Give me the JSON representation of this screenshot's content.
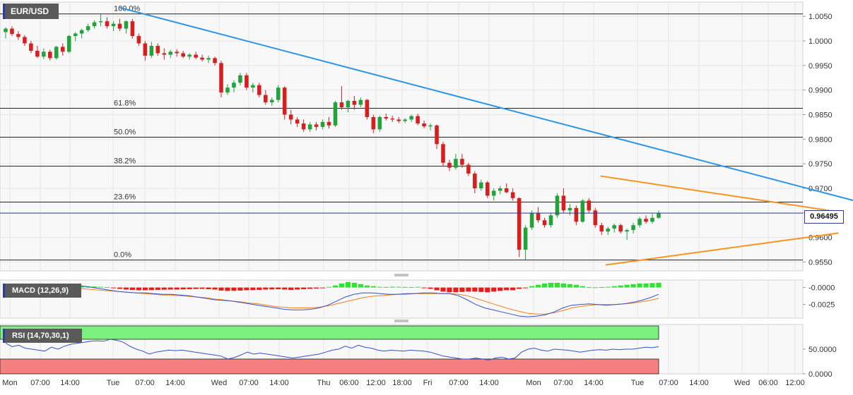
{
  "symbol": "EUR/USD",
  "current_price_label": "0.96495",
  "macd_label": "MACD (12,26,9)",
  "rsi_label": "RSI (14,70,30,1)",
  "x_axis_labels": [
    "Mon",
    "07:00",
    "14:00",
    "Tue",
    "07:00",
    "14:00",
    "Wed",
    "07:00",
    "14:00",
    "Thu",
    "06:00",
    "12:00",
    "18:00",
    "Fri",
    "07:00",
    "14:00",
    "Mon",
    "07:00",
    "14:00",
    "Tue",
    "07:00",
    "14:00",
    "Wed",
    "06:00",
    "12:00"
  ],
  "colors": {
    "bull": "#21a33a",
    "bear": "#d81f1f",
    "trendline": "#2b95e8",
    "triangle": "#f7941d",
    "price_line": "#2d3a8c",
    "macd_line": "#3451c6",
    "signal_line": "#f07f20",
    "rsi_line": "#3451c6",
    "rsi_overbought": "#7cf07c",
    "rsi_oversold": "#f58080"
  },
  "chart_data": [
    {
      "type": "candlestick",
      "title": "EUR/USD",
      "y_ticks": [
        0.955,
        0.96,
        0.965,
        0.97,
        0.975,
        0.98,
        0.985,
        0.99,
        0.995,
        1.0,
        1.005
      ],
      "ylim": [
        0.9532,
        1.0079
      ],
      "current_price": 0.96495,
      "fibonacci": [
        {
          "label": "100.0%",
          "value": 1.0055
        },
        {
          "label": "61.8%",
          "value": 0.9863
        },
        {
          "label": "50.0%",
          "value": 0.9804
        },
        {
          "label": "38.2%",
          "value": 0.9745
        },
        {
          "label": "23.6%",
          "value": 0.9672
        },
        {
          "label": "0.0%",
          "value": 0.9554
        }
      ],
      "ohlc": [
        [
          1.0018,
          1.0028,
          1.0005,
          1.0025
        ],
        [
          1.0025,
          1.003,
          1.001,
          1.0014
        ],
        [
          1.0014,
          1.002,
          1.0002,
          1.0008
        ],
        [
          1.0008,
          1.0012,
          0.999,
          0.9995
        ],
        [
          0.9995,
          1.0,
          0.9975,
          0.998
        ],
        [
          0.998,
          0.999,
          0.9965,
          0.9968
        ],
        [
          0.9968,
          0.9985,
          0.9963,
          0.9978
        ],
        [
          0.9978,
          0.9982,
          0.996,
          0.9965
        ],
        [
          0.9965,
          0.999,
          0.9962,
          0.9988
        ],
        [
          0.9988,
          0.9995,
          0.997,
          0.9978
        ],
        [
          0.9978,
          1.0012,
          0.9975,
          1.001
        ],
        [
          1.001,
          1.0018,
          1.0,
          1.0015
        ],
        [
          1.0015,
          1.0025,
          1.0005,
          1.0022
        ],
        [
          1.0022,
          1.0035,
          1.0018,
          1.003
        ],
        [
          1.003,
          1.0042,
          1.0025,
          1.0038
        ],
        [
          1.0038,
          1.0055,
          1.003,
          1.004
        ],
        [
          1.004,
          1.0048,
          1.0025,
          1.003
        ],
        [
          1.003,
          1.004,
          1.002,
          1.0035
        ],
        [
          1.0035,
          1.0045,
          1.002,
          1.0025
        ],
        [
          1.0025,
          1.0042,
          1.0015,
          1.004
        ],
        [
          1.004,
          1.0045,
          1.0005,
          1.001
        ],
        [
          1.001,
          1.0015,
          0.999,
          0.9995
        ],
        [
          0.9995,
          1.0,
          0.996,
          0.997
        ],
        [
          0.997,
          0.9998,
          0.9965,
          0.999
        ],
        [
          0.999,
          0.9995,
          0.997,
          0.9975
        ],
        [
          0.9975,
          0.9985,
          0.9962,
          0.9972
        ],
        [
          0.9972,
          0.9982,
          0.9965,
          0.9978
        ],
        [
          0.9978,
          0.9983,
          0.9968,
          0.9975
        ],
        [
          0.9975,
          0.998,
          0.9965,
          0.9968
        ],
        [
          0.9968,
          0.9975,
          0.9962,
          0.9972
        ],
        [
          0.9972,
          0.9978,
          0.9963,
          0.9966
        ],
        [
          0.9966,
          0.9972,
          0.9958,
          0.9962
        ],
        [
          0.9962,
          0.997,
          0.9955,
          0.9965
        ],
        [
          0.9965,
          0.9968,
          0.995,
          0.9955
        ],
        [
          0.9955,
          0.996,
          0.9885,
          0.9895
        ],
        [
          0.9895,
          0.9912,
          0.989,
          0.9905
        ],
        [
          0.9905,
          0.992,
          0.9895,
          0.9915
        ],
        [
          0.9915,
          0.9935,
          0.991,
          0.993
        ],
        [
          0.993,
          0.9935,
          0.99,
          0.9905
        ],
        [
          0.9905,
          0.9915,
          0.9895,
          0.991
        ],
        [
          0.991,
          0.9915,
          0.9885,
          0.989
        ],
        [
          0.989,
          0.99,
          0.987,
          0.9875
        ],
        [
          0.9875,
          0.9885,
          0.9868,
          0.988
        ],
        [
          0.988,
          0.991,
          0.9875,
          0.9905
        ],
        [
          0.9905,
          0.9908,
          0.984,
          0.985
        ],
        [
          0.985,
          0.986,
          0.983,
          0.984
        ],
        [
          0.984,
          0.9845,
          0.9825,
          0.9832
        ],
        [
          0.9832,
          0.984,
          0.9815,
          0.982
        ],
        [
          0.982,
          0.9835,
          0.9815,
          0.983
        ],
        [
          0.983,
          0.9835,
          0.9818,
          0.9825
        ],
        [
          0.9825,
          0.984,
          0.982,
          0.9835
        ],
        [
          0.9835,
          0.9845,
          0.9822,
          0.9828
        ],
        [
          0.9828,
          0.9878,
          0.9825,
          0.9875
        ],
        [
          0.9875,
          0.9908,
          0.986,
          0.9865
        ],
        [
          0.9865,
          0.988,
          0.9855,
          0.9878
        ],
        [
          0.9878,
          0.9888,
          0.986,
          0.987
        ],
        [
          0.987,
          0.9885,
          0.9865,
          0.988
        ],
        [
          0.988,
          0.9882,
          0.984,
          0.9845
        ],
        [
          0.9845,
          0.985,
          0.9812,
          0.982
        ],
        [
          0.982,
          0.9848,
          0.9815,
          0.9845
        ],
        [
          0.9845,
          0.9852,
          0.9838,
          0.9842
        ],
        [
          0.9842,
          0.9848,
          0.9835,
          0.984
        ],
        [
          0.984,
          0.9845,
          0.9833,
          0.9837
        ],
        [
          0.9837,
          0.9843,
          0.9833,
          0.984
        ],
        [
          0.984,
          0.985,
          0.9835,
          0.9847
        ],
        [
          0.9847,
          0.9852,
          0.9828,
          0.9832
        ],
        [
          0.9832,
          0.9838,
          0.9822,
          0.9826
        ],
        [
          0.9826,
          0.9832,
          0.9818,
          0.9828
        ],
        [
          0.9828,
          0.983,
          0.978,
          0.979
        ],
        [
          0.979,
          0.9795,
          0.9745,
          0.9752
        ],
        [
          0.9752,
          0.9758,
          0.9735,
          0.9742
        ],
        [
          0.9742,
          0.977,
          0.9738,
          0.976
        ],
        [
          0.976,
          0.977,
          0.9742,
          0.9748
        ],
        [
          0.9748,
          0.9752,
          0.9725,
          0.973
        ],
        [
          0.973,
          0.9735,
          0.969,
          0.97
        ],
        [
          0.97,
          0.9718,
          0.9695,
          0.9712
        ],
        [
          0.9712,
          0.9715,
          0.968,
          0.9685
        ],
        [
          0.9685,
          0.97,
          0.9675,
          0.9695
        ],
        [
          0.9695,
          0.9705,
          0.9688,
          0.97
        ],
        [
          0.97,
          0.971,
          0.969,
          0.9692
        ],
        [
          0.9692,
          0.97,
          0.9675,
          0.968
        ],
        [
          0.968,
          0.9682,
          0.956,
          0.9575
        ],
        [
          0.9575,
          0.9625,
          0.9555,
          0.962
        ],
        [
          0.962,
          0.9655,
          0.9615,
          0.965
        ],
        [
          0.965,
          0.9662,
          0.963,
          0.9635
        ],
        [
          0.9635,
          0.964,
          0.962,
          0.9625
        ],
        [
          0.9625,
          0.965,
          0.962,
          0.9645
        ],
        [
          0.9645,
          0.969,
          0.964,
          0.9685
        ],
        [
          0.9685,
          0.97,
          0.965,
          0.9655
        ],
        [
          0.9655,
          0.9668,
          0.9645,
          0.966
        ],
        [
          0.966,
          0.9665,
          0.9625,
          0.9632
        ],
        [
          0.9632,
          0.9678,
          0.963,
          0.9675
        ],
        [
          0.9675,
          0.968,
          0.965,
          0.9655
        ],
        [
          0.9655,
          0.966,
          0.962,
          0.9625
        ],
        [
          0.9625,
          0.963,
          0.9605,
          0.9612
        ],
        [
          0.9612,
          0.9622,
          0.9605,
          0.9618
        ],
        [
          0.9618,
          0.9628,
          0.961,
          0.9625
        ],
        [
          0.9625,
          0.9628,
          0.9608,
          0.9612
        ],
        [
          0.9612,
          0.9618,
          0.9595,
          0.9615
        ],
        [
          0.9615,
          0.963,
          0.9608,
          0.9625
        ],
        [
          0.9625,
          0.9642,
          0.962,
          0.9638
        ],
        [
          0.9638,
          0.9645,
          0.9628,
          0.9632
        ],
        [
          0.9632,
          0.9648,
          0.9628,
          0.964
        ],
        [
          0.964,
          0.9655,
          0.9638,
          0.96495
        ]
      ],
      "trendline": {
        "from": [
          0.14,
          1.0068
        ],
        "to": [
          1.058,
          0.9649
        ]
      },
      "triangle_upper": {
        "from": [
          0.704,
          0.9725
        ],
        "to": [
          0.983,
          0.9652
        ]
      },
      "triangle_lower": {
        "from": [
          0.71,
          0.9544
        ],
        "to": [
          0.983,
          0.9609
        ]
      }
    },
    {
      "type": "macd",
      "title": "MACD (12,26,9)",
      "y_ticks": [
        -0.0025,
        0.0
      ],
      "y_tick_labels": [
        "-0.0025",
        "-0.0000"
      ],
      "ylim": [
        -0.0045,
        0.0011
      ],
      "histogram": [
        6e-05,
        8e-05,
        0.0001,
        0.00012,
        0.00015,
        0.00018,
        0.0002,
        0.00022,
        0.00025,
        0.00026,
        0.00025,
        0.00022,
        0.0002,
        0.00018,
        0.00015,
        0.0001,
        5e-05,
        -0.0001,
        -0.0002,
        -0.0003,
        -0.00035,
        -0.0004,
        -0.0004,
        -0.00038,
        -0.00035,
        -0.00032,
        -0.0003,
        -0.0003,
        -0.00028,
        -0.00025,
        -0.00022,
        -0.0002,
        -0.00025,
        -0.0003,
        -0.00045,
        -0.0005,
        -0.00048,
        -0.00045,
        -0.0004,
        -0.00038,
        -0.00035,
        -0.0003,
        -0.00028,
        -0.00025,
        -0.0003,
        -0.00035,
        -0.0003,
        -0.00025,
        -0.0002,
        -0.00015,
        -0.0001,
        0.0001,
        0.0003,
        0.0006,
        0.0008,
        0.0007,
        0.0005,
        0.0003,
        0.0002,
        0.0001,
        8e-05,
        0.00012,
        0.0001,
        8e-05,
        6e-05,
        0.0001,
        -8e-05,
        -0.0002,
        -0.0004,
        -0.0006,
        -0.0007,
        -0.0007,
        -0.00065,
        -0.0006,
        -0.0006,
        -0.00065,
        -0.0007,
        -0.0006,
        -0.0005,
        -0.0004,
        -0.0004,
        -0.0002,
        -0.0001,
        0.0002,
        0.0004,
        0.0006,
        0.0007,
        0.0007,
        0.0006,
        0.0005,
        0.0004,
        0.0002,
        5e-05,
        3e-05,
        6e-05,
        0.0001,
        0.0002,
        0.0003,
        0.0004,
        0.0005,
        0.0006,
        0.0006,
        0.00065,
        0.0007
      ],
      "macd": [
        0.0,
        0.0,
        0.0001,
        0.0002,
        0.0003,
        0.0004,
        0.0004,
        0.0004,
        0.0003,
        0.0002,
        0.0,
        -0.0002,
        -0.0004,
        -0.0006,
        -0.0007,
        -0.0008,
        -0.0008,
        -0.0009,
        -0.001,
        -0.001,
        -0.0011,
        -0.0012,
        -0.0014,
        -0.0016,
        -0.0018,
        -0.0019,
        -0.002,
        -0.0022,
        -0.0024,
        -0.0026,
        -0.0028,
        -0.003,
        -0.0032,
        -0.0033,
        -0.0033,
        -0.0032,
        -0.003,
        -0.0026,
        -0.002,
        -0.0014,
        -0.001,
        -0.0008,
        -0.0008,
        -0.0009,
        -0.001,
        -0.001,
        -0.0009,
        -0.0009,
        -0.0008,
        -0.0008,
        -0.0009,
        -0.0009,
        -0.0012,
        -0.0018,
        -0.0025,
        -0.003,
        -0.0033,
        -0.0036,
        -0.0039,
        -0.0042,
        -0.0043,
        -0.0042,
        -0.004,
        -0.0036,
        -0.003,
        -0.0026,
        -0.0025,
        -0.0024,
        -0.0025,
        -0.0026,
        -0.0025,
        -0.0024,
        -0.0022,
        -0.0019,
        -0.0015,
        -0.001
      ],
      "signal": [
        0.0001,
        0.0001,
        0.0001,
        0.0001,
        0.0001,
        0.0001,
        0.0001,
        0.0,
        -0.0001,
        -0.0002,
        -0.0003,
        -0.0004,
        -0.0005,
        -0.0006,
        -0.0007,
        -0.0008,
        -0.0009,
        -0.001,
        -0.0011,
        -0.0011,
        -0.0012,
        -0.0013,
        -0.0014,
        -0.0015,
        -0.0017,
        -0.0018,
        -0.002,
        -0.0021,
        -0.0023,
        -0.0024,
        -0.0026,
        -0.0028,
        -0.0029,
        -0.003,
        -0.003,
        -0.003,
        -0.0029,
        -0.0027,
        -0.0024,
        -0.0021,
        -0.0018,
        -0.0015,
        -0.0013,
        -0.0012,
        -0.0011,
        -0.001,
        -0.001,
        -0.0009,
        -0.0009,
        -0.0009,
        -0.0009,
        -0.0009,
        -0.001,
        -0.0012,
        -0.0016,
        -0.002,
        -0.0024,
        -0.0028,
        -0.0032,
        -0.0035,
        -0.0038,
        -0.0039,
        -0.0039,
        -0.0037,
        -0.0034,
        -0.003,
        -0.0028,
        -0.0026,
        -0.0025,
        -0.0025,
        -0.0025,
        -0.0024,
        -0.0023,
        -0.0021,
        -0.0019,
        -0.0016
      ]
    },
    {
      "type": "rsi",
      "title": "RSI (14,70,30,1)",
      "y_ticks": [
        0,
        50
      ],
      "y_tick_labels": [
        "0.0000",
        "50.0000"
      ],
      "ylim": [
        0,
        100
      ],
      "overbought": 70,
      "oversold": 30,
      "values": [
        62,
        55,
        58,
        52,
        50,
        48,
        46,
        54,
        50,
        56,
        60,
        62,
        64,
        66,
        67,
        66,
        70,
        68,
        64,
        56,
        50,
        46,
        40,
        44,
        46,
        48,
        47,
        48,
        46,
        44,
        42,
        40,
        38,
        36,
        30,
        33,
        38,
        44,
        40,
        42,
        40,
        38,
        36,
        34,
        32,
        34,
        36,
        38,
        40,
        44,
        48,
        50,
        56,
        52,
        58,
        54,
        52,
        48,
        46,
        48,
        47,
        46,
        48,
        47,
        46,
        44,
        40,
        36,
        34,
        32,
        30,
        30,
        32,
        30,
        28,
        32,
        34,
        30,
        32,
        44,
        50,
        52,
        48,
        46,
        50,
        49,
        48,
        46,
        44,
        46,
        48,
        49,
        48,
        50,
        49,
        50,
        50,
        52,
        54,
        53,
        55
      ]
    }
  ]
}
